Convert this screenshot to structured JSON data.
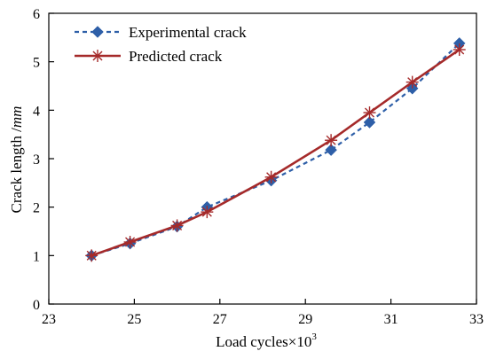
{
  "chart_data": {
    "type": "line",
    "title": "",
    "xlabel": "Load cycles×10",
    "xlabel_superscript": "3",
    "ylabel": "Crack length /",
    "ylabel_unit": "mm",
    "xlim": [
      23,
      33
    ],
    "ylim": [
      0,
      6
    ],
    "xticks": [
      23,
      25,
      27,
      29,
      31,
      33
    ],
    "yticks": [
      0,
      1,
      2,
      3,
      4,
      5,
      6
    ],
    "grid": false,
    "legend_position": "top-left",
    "series": [
      {
        "name": "Experimental crack",
        "color": "#2E5FA8",
        "line_style": "dashed",
        "marker": "diamond",
        "x": [
          24.0,
          24.9,
          26.0,
          26.7,
          28.2,
          29.6,
          30.5,
          31.5,
          32.6
        ],
        "y": [
          1.0,
          1.25,
          1.6,
          2.0,
          2.55,
          3.18,
          3.75,
          4.45,
          5.38
        ]
      },
      {
        "name": "Predicted crack",
        "color": "#A52A2A",
        "line_style": "solid",
        "marker": "asterisk",
        "x": [
          24.0,
          24.9,
          26.0,
          26.7,
          28.2,
          29.6,
          30.5,
          31.5,
          32.6
        ],
        "y": [
          1.0,
          1.28,
          1.62,
          1.9,
          2.62,
          3.38,
          3.95,
          4.58,
          5.25
        ]
      }
    ]
  }
}
